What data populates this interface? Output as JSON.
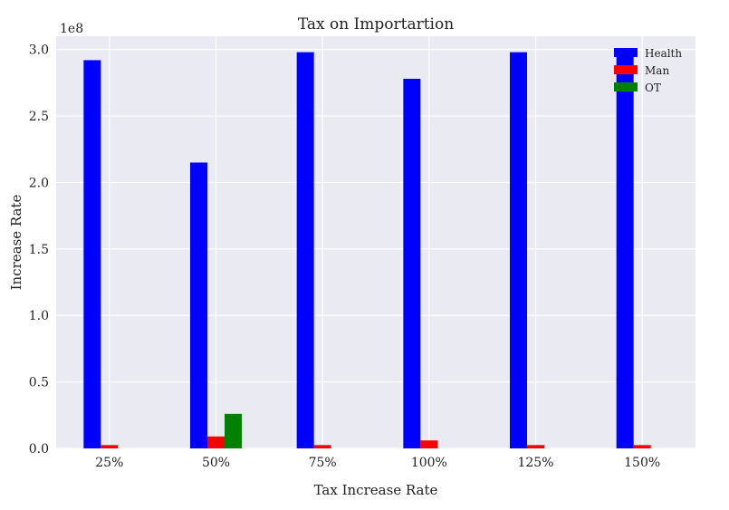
{
  "chart_data": {
    "type": "bar",
    "title": "Tax on Importartion",
    "xlabel": "Tax Increase Rate",
    "ylabel": "Increase Rate",
    "y_scale_label": "1e8",
    "categories": [
      "25%",
      "50%",
      "75%",
      "100%",
      "125%",
      "150%"
    ],
    "series": [
      {
        "name": "Health",
        "color": "#0000ff",
        "values": [
          2.92,
          2.15,
          2.98,
          2.78,
          2.98,
          3.0
        ]
      },
      {
        "name": "Man",
        "color": "#ff0000",
        "values": [
          0.025,
          0.09,
          0.025,
          0.06,
          0.025,
          0.025
        ]
      },
      {
        "name": "OT",
        "color": "#008000",
        "values": [
          0,
          0.26,
          0,
          0,
          0,
          0
        ]
      }
    ],
    "ylim": [
      0,
      3.1
    ],
    "yticks": [
      "0.0",
      "0.5",
      "1.0",
      "1.5",
      "2.0",
      "2.5",
      "3.0"
    ],
    "ytick_values": [
      0,
      0.5,
      1.0,
      1.5,
      2.0,
      2.5,
      3.0
    ],
    "grid": true,
    "legend_position": "top-right",
    "plot_background": "#eaeaf2",
    "grid_color": "#ffffff"
  }
}
